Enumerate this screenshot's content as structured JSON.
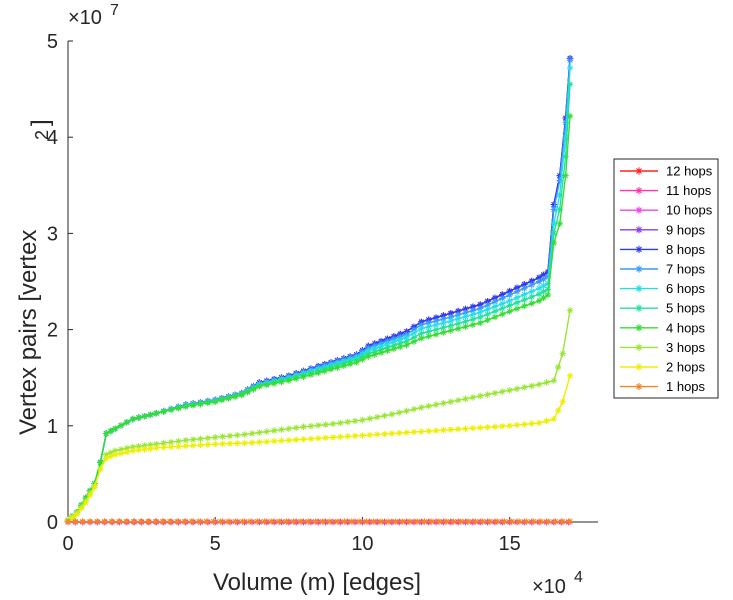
{
  "chart_data": {
    "type": "line",
    "title": "",
    "xlabel": "Volume (m) [edges]",
    "ylabel_main": "Vertex pairs [vertex",
    "ylabel_superscript": "2",
    "ylabel_close": "]",
    "x_multiplier": {
      "base": "×10",
      "exponent": "4"
    },
    "y_multiplier": {
      "base": "×10",
      "exponent": "7"
    },
    "xlim": [
      0,
      18
    ],
    "ylim": [
      0,
      5
    ],
    "xticks": [
      0,
      5,
      10,
      15
    ],
    "xtick_labels": [
      "0",
      "5",
      "10",
      "15"
    ],
    "yticks": [
      0,
      1,
      2,
      3,
      4,
      5
    ],
    "ytick_labels": [
      "0",
      "1",
      "2",
      "3",
      "4",
      "5"
    ],
    "legend_position": "right",
    "marker": "asterisk",
    "series": [
      {
        "name": "12 hops",
        "color": "#ff2020",
        "points": [
          [
            0,
            0
          ],
          [
            17,
            0
          ]
        ]
      },
      {
        "name": "11 hops",
        "color": "#ff33aa",
        "points": [
          [
            0,
            0
          ],
          [
            17,
            0
          ]
        ]
      },
      {
        "name": "10 hops",
        "color": "#ee44ee",
        "points": [
          [
            0,
            0.02
          ],
          [
            0.3,
            0.1
          ],
          [
            0.6,
            0.25
          ],
          [
            0.9,
            0.4
          ],
          [
            1.1,
            0.62
          ],
          [
            1.3,
            0.92
          ],
          [
            1.6,
            0.97
          ],
          [
            2.2,
            1.07
          ],
          [
            3,
            1.13
          ],
          [
            4,
            1.22
          ],
          [
            5,
            1.27
          ],
          [
            5.9,
            1.34
          ],
          [
            6.5,
            1.45
          ],
          [
            7.5,
            1.52
          ],
          [
            8.5,
            1.62
          ],
          [
            9.8,
            1.74
          ],
          [
            10.2,
            1.83
          ],
          [
            11.5,
            1.98
          ],
          [
            12,
            2.08
          ],
          [
            13,
            2.17
          ],
          [
            14,
            2.26
          ],
          [
            15,
            2.4
          ],
          [
            16,
            2.54
          ],
          [
            16.3,
            2.6
          ],
          [
            16.5,
            3.3
          ],
          [
            16.7,
            3.6
          ],
          [
            16.9,
            4.2
          ],
          [
            17.05,
            4.82
          ]
        ]
      },
      {
        "name": "9 hops",
        "color": "#8a3cf0",
        "points": [
          [
            0,
            0.02
          ],
          [
            0.3,
            0.1
          ],
          [
            0.6,
            0.25
          ],
          [
            0.9,
            0.4
          ],
          [
            1.1,
            0.62
          ],
          [
            1.3,
            0.92
          ],
          [
            1.6,
            0.97
          ],
          [
            2.2,
            1.07
          ],
          [
            3,
            1.13
          ],
          [
            4,
            1.22
          ],
          [
            5,
            1.27
          ],
          [
            5.9,
            1.34
          ],
          [
            6.5,
            1.45
          ],
          [
            7.5,
            1.52
          ],
          [
            8.5,
            1.62
          ],
          [
            9.8,
            1.74
          ],
          [
            10.2,
            1.83
          ],
          [
            11.5,
            1.98
          ],
          [
            12,
            2.08
          ],
          [
            13,
            2.17
          ],
          [
            14,
            2.26
          ],
          [
            15,
            2.4
          ],
          [
            16,
            2.54
          ],
          [
            16.3,
            2.6
          ],
          [
            16.5,
            3.3
          ],
          [
            16.7,
            3.6
          ],
          [
            16.9,
            4.2
          ],
          [
            17.05,
            4.82
          ]
        ]
      },
      {
        "name": "8 hops",
        "color": "#2b3cf5",
        "points": [
          [
            0,
            0.02
          ],
          [
            0.3,
            0.1
          ],
          [
            0.6,
            0.25
          ],
          [
            0.9,
            0.4
          ],
          [
            1.1,
            0.62
          ],
          [
            1.3,
            0.92
          ],
          [
            1.6,
            0.97
          ],
          [
            2.2,
            1.07
          ],
          [
            3,
            1.13
          ],
          [
            4,
            1.22
          ],
          [
            5,
            1.27
          ],
          [
            5.9,
            1.34
          ],
          [
            6.5,
            1.45
          ],
          [
            7.5,
            1.52
          ],
          [
            8.5,
            1.62
          ],
          [
            9.8,
            1.74
          ],
          [
            10.2,
            1.83
          ],
          [
            11.5,
            1.98
          ],
          [
            12,
            2.08
          ],
          [
            13,
            2.17
          ],
          [
            14,
            2.26
          ],
          [
            15,
            2.4
          ],
          [
            16,
            2.54
          ],
          [
            16.3,
            2.6
          ],
          [
            16.5,
            3.3
          ],
          [
            16.7,
            3.6
          ],
          [
            16.9,
            4.2
          ],
          [
            17.05,
            4.82
          ]
        ]
      },
      {
        "name": "7 hops",
        "color": "#3a9af5",
        "points": [
          [
            0,
            0.02
          ],
          [
            0.3,
            0.1
          ],
          [
            0.6,
            0.25
          ],
          [
            0.9,
            0.4
          ],
          [
            1.1,
            0.62
          ],
          [
            1.3,
            0.92
          ],
          [
            1.6,
            0.97
          ],
          [
            2.2,
            1.07
          ],
          [
            3,
            1.13
          ],
          [
            4,
            1.22
          ],
          [
            5,
            1.27
          ],
          [
            5.9,
            1.34
          ],
          [
            6.5,
            1.44
          ],
          [
            7.5,
            1.51
          ],
          [
            8.5,
            1.61
          ],
          [
            9.8,
            1.73
          ],
          [
            10.2,
            1.81
          ],
          [
            11.5,
            1.95
          ],
          [
            12,
            2.05
          ],
          [
            13,
            2.13
          ],
          [
            14,
            2.22
          ],
          [
            15,
            2.36
          ],
          [
            16,
            2.5
          ],
          [
            16.3,
            2.55
          ],
          [
            16.5,
            3.25
          ],
          [
            16.7,
            3.55
          ],
          [
            16.9,
            4.15
          ],
          [
            17.05,
            4.8
          ]
        ]
      },
      {
        "name": "6 hops",
        "color": "#22ddee",
        "points": [
          [
            0,
            0.02
          ],
          [
            0.3,
            0.1
          ],
          [
            0.6,
            0.25
          ],
          [
            0.9,
            0.4
          ],
          [
            1.1,
            0.62
          ],
          [
            1.3,
            0.92
          ],
          [
            1.6,
            0.97
          ],
          [
            2.2,
            1.07
          ],
          [
            3,
            1.13
          ],
          [
            4,
            1.21
          ],
          [
            5,
            1.26
          ],
          [
            5.9,
            1.33
          ],
          [
            6.5,
            1.43
          ],
          [
            7.5,
            1.5
          ],
          [
            8.5,
            1.59
          ],
          [
            9.8,
            1.71
          ],
          [
            10.2,
            1.78
          ],
          [
            11.5,
            1.92
          ],
          [
            12,
            2.01
          ],
          [
            13,
            2.09
          ],
          [
            14,
            2.18
          ],
          [
            15,
            2.3
          ],
          [
            16,
            2.43
          ],
          [
            16.3,
            2.48
          ],
          [
            16.5,
            3.1
          ],
          [
            16.7,
            3.4
          ],
          [
            16.9,
            4.0
          ],
          [
            17.05,
            4.72
          ]
        ]
      },
      {
        "name": "5 hops",
        "color": "#22e0a0",
        "points": [
          [
            0,
            0.02
          ],
          [
            0.3,
            0.1
          ],
          [
            0.6,
            0.25
          ],
          [
            0.9,
            0.4
          ],
          [
            1.1,
            0.62
          ],
          [
            1.3,
            0.92
          ],
          [
            1.6,
            0.97
          ],
          [
            2.2,
            1.07
          ],
          [
            3,
            1.13
          ],
          [
            4,
            1.21
          ],
          [
            5,
            1.26
          ],
          [
            5.9,
            1.33
          ],
          [
            6.5,
            1.42
          ],
          [
            7.5,
            1.49
          ],
          [
            8.5,
            1.57
          ],
          [
            9.8,
            1.69
          ],
          [
            10.2,
            1.75
          ],
          [
            11.5,
            1.88
          ],
          [
            12,
            1.96
          ],
          [
            13,
            2.04
          ],
          [
            14,
            2.13
          ],
          [
            15,
            2.25
          ],
          [
            16,
            2.37
          ],
          [
            16.3,
            2.42
          ],
          [
            16.5,
            3.0
          ],
          [
            16.7,
            3.25
          ],
          [
            16.9,
            3.8
          ],
          [
            17.05,
            4.55
          ]
        ]
      },
      {
        "name": "4 hops",
        "color": "#33dd33",
        "points": [
          [
            0,
            0.02
          ],
          [
            0.3,
            0.1
          ],
          [
            0.6,
            0.25
          ],
          [
            0.9,
            0.4
          ],
          [
            1.1,
            0.62
          ],
          [
            1.3,
            0.92
          ],
          [
            1.6,
            0.97
          ],
          [
            2.2,
            1.07
          ],
          [
            3,
            1.13
          ],
          [
            4,
            1.2
          ],
          [
            5,
            1.25
          ],
          [
            5.9,
            1.32
          ],
          [
            6.5,
            1.41
          ],
          [
            7.5,
            1.47
          ],
          [
            8.5,
            1.55
          ],
          [
            9.8,
            1.66
          ],
          [
            10.2,
            1.72
          ],
          [
            11.5,
            1.84
          ],
          [
            12,
            1.91
          ],
          [
            13,
            1.99
          ],
          [
            14,
            2.07
          ],
          [
            15,
            2.19
          ],
          [
            16,
            2.3
          ],
          [
            16.3,
            2.36
          ],
          [
            16.5,
            2.9
          ],
          [
            16.7,
            3.1
          ],
          [
            16.9,
            3.6
          ],
          [
            17.05,
            4.22
          ]
        ]
      },
      {
        "name": "3 hops",
        "color": "#99e633",
        "points": [
          [
            0,
            0.02
          ],
          [
            0.3,
            0.1
          ],
          [
            0.6,
            0.22
          ],
          [
            0.9,
            0.38
          ],
          [
            1.1,
            0.55
          ],
          [
            1.3,
            0.7
          ],
          [
            1.6,
            0.74
          ],
          [
            2.2,
            0.78
          ],
          [
            3,
            0.81
          ],
          [
            4,
            0.85
          ],
          [
            5,
            0.88
          ],
          [
            6,
            0.91
          ],
          [
            7,
            0.95
          ],
          [
            8,
            0.99
          ],
          [
            9,
            1.02
          ],
          [
            10,
            1.06
          ],
          [
            11,
            1.12
          ],
          [
            12,
            1.19
          ],
          [
            13,
            1.25
          ],
          [
            14,
            1.31
          ],
          [
            15,
            1.37
          ],
          [
            16,
            1.43
          ],
          [
            16.5,
            1.47
          ],
          [
            16.8,
            1.75
          ],
          [
            17.05,
            2.2
          ]
        ]
      },
      {
        "name": "2 hops",
        "color": "#eeee00",
        "points": [
          [
            0,
            0.01
          ],
          [
            0.3,
            0.08
          ],
          [
            0.6,
            0.2
          ],
          [
            0.9,
            0.36
          ],
          [
            1.1,
            0.55
          ],
          [
            1.3,
            0.66
          ],
          [
            1.6,
            0.7
          ],
          [
            2.2,
            0.74
          ],
          [
            3,
            0.77
          ],
          [
            4,
            0.79
          ],
          [
            5,
            0.81
          ],
          [
            6,
            0.82
          ],
          [
            7,
            0.84
          ],
          [
            8,
            0.86
          ],
          [
            9,
            0.88
          ],
          [
            10,
            0.9
          ],
          [
            11,
            0.92
          ],
          [
            12,
            0.94
          ],
          [
            13,
            0.96
          ],
          [
            14,
            0.98
          ],
          [
            15,
            1.0
          ],
          [
            16,
            1.03
          ],
          [
            16.5,
            1.07
          ],
          [
            16.8,
            1.25
          ],
          [
            17.05,
            1.52
          ]
        ]
      },
      {
        "name": "1 hops",
        "color": "#ee8822",
        "points": [
          [
            0,
            0.005
          ],
          [
            17.05,
            0.005
          ]
        ]
      }
    ]
  }
}
